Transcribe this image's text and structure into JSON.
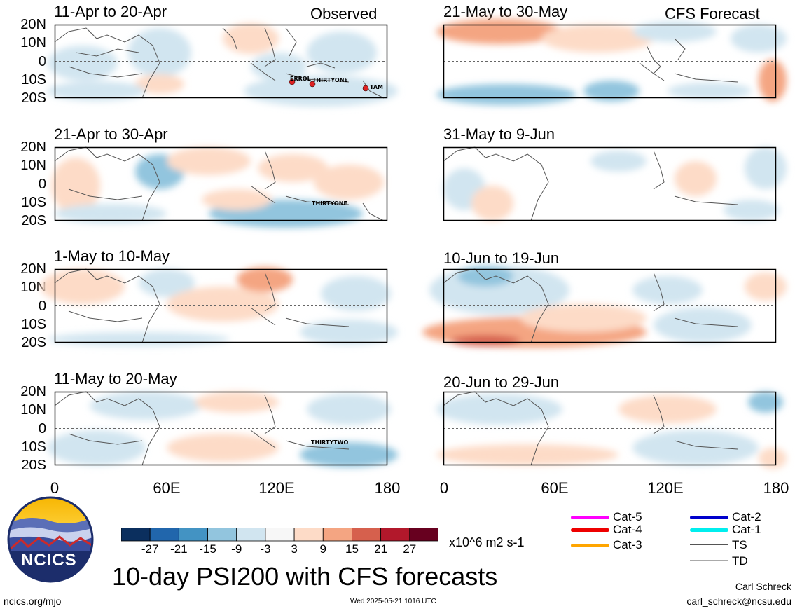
{
  "observed_label": "Observed",
  "forecast_label": "CFS Forecast",
  "panels_observed": [
    {
      "title": "11-Apr to 20-Apr"
    },
    {
      "title": "21-Apr to 30-Apr"
    },
    {
      "title": "1-May to 10-May"
    },
    {
      "title": "11-May to 20-May"
    }
  ],
  "panels_forecast": [
    {
      "title": "21-May to 30-May"
    },
    {
      "title": "31-May to 9-Jun"
    },
    {
      "title": "10-Jun to 19-Jun"
    },
    {
      "title": "20-Jun to 29-Jun"
    }
  ],
  "y_ticks": [
    "20N",
    "10N",
    "0",
    "10S",
    "20S"
  ],
  "x_ticks": [
    "0",
    "60E",
    "120E",
    "180"
  ],
  "storm_labels": {
    "p1": [
      "ERROL",
      "THIRTYONE",
      "TAM"
    ],
    "p2": [
      "THIRTYONE"
    ],
    "p4": [
      "THIRTYTWO"
    ]
  },
  "colorbar": {
    "labels": [
      "-27",
      "-21",
      "-15",
      "-9",
      "-3",
      "3",
      "9",
      "15",
      "21",
      "27"
    ],
    "colors": [
      "#0b2f5e",
      "#2166ac",
      "#4393c3",
      "#92c5de",
      "#d1e5f0",
      "#f7f7f7",
      "#fddbc7",
      "#f4a582",
      "#d6604d",
      "#b2182b",
      "#67001f"
    ],
    "units": "x10^6 m2 s-1"
  },
  "legend": {
    "items": [
      {
        "label": "Cat-5",
        "color": "#ff00ff"
      },
      {
        "label": "Cat-4",
        "color": "#ee0000"
      },
      {
        "label": "Cat-3",
        "color": "#ffa500"
      },
      {
        "label": "Cat-2",
        "color": "#0000cc"
      },
      {
        "label": "Cat-1",
        "color": "#00eeee"
      },
      {
        "label": "TS",
        "color": "#555555"
      },
      {
        "label": "TD",
        "color": "#aaaaaa"
      }
    ]
  },
  "logo_text": "NCICS",
  "main_title": "10-day PSI200 with CFS forecasts",
  "footer": {
    "url": "ncics.org/mjo",
    "timestamp": "Wed 2025-05-21 1016 UTC",
    "author": "Carl Schreck",
    "email": "carl_schreck@ncsu.edu"
  }
}
